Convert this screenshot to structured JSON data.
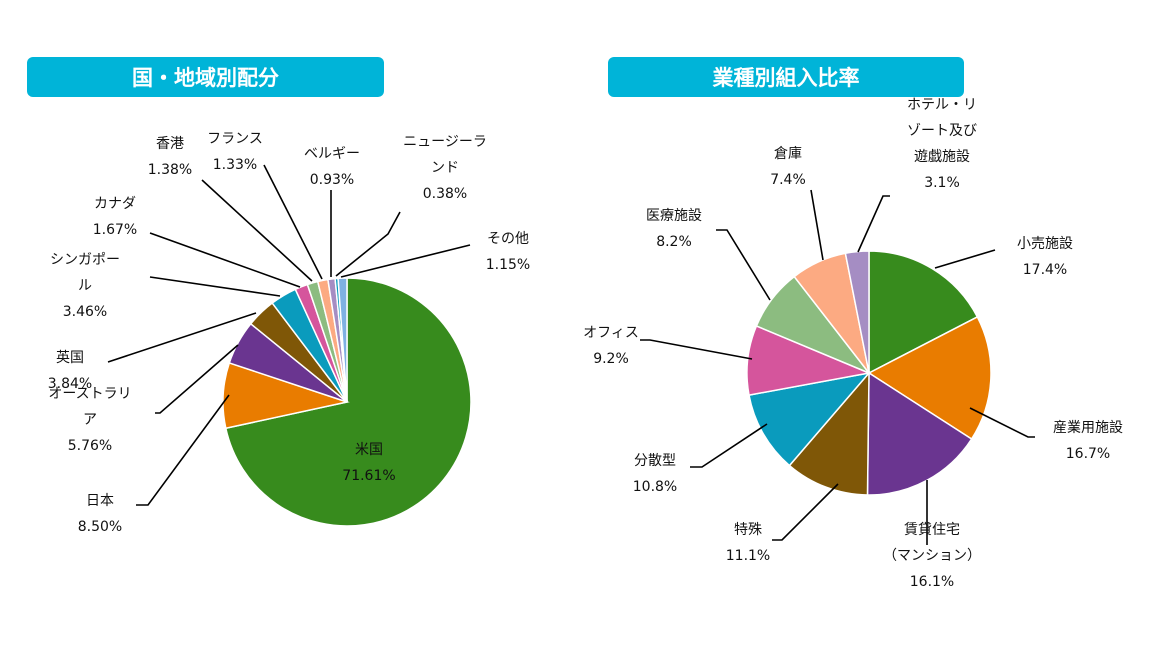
{
  "colors": {
    "green": "#378b1d",
    "orange": "#e97c00",
    "purple": "#6a3590",
    "brown": "#7f5707",
    "teal": "#0a9bbd",
    "pink": "#d5559c",
    "lightgreen": "#8cbc80",
    "peach": "#fcaa82",
    "lavender": "#a58dc3",
    "lightblue": "#7fb1e3",
    "title_bg": "#00b4d8"
  },
  "chart_data": [
    {
      "type": "pie",
      "title": "国・地域別配分",
      "slices": [
        {
          "name": "米国",
          "value": 71.61,
          "pct": "71.61%",
          "color": "#378b1d"
        },
        {
          "name": "日本",
          "value": 8.5,
          "pct": "8.50%",
          "color": "#e97c00"
        },
        {
          "name": [
            "オーストラリ",
            "ア"
          ],
          "value": 5.76,
          "pct": "5.76%",
          "color": "#6a3590"
        },
        {
          "name": "英国",
          "value": 3.84,
          "pct": "3.84%",
          "color": "#7f5707"
        },
        {
          "name": [
            "シンガポー",
            "ル"
          ],
          "value": 3.46,
          "pct": "3.46%",
          "color": "#0a9bbd"
        },
        {
          "name": "カナダ",
          "value": 1.67,
          "pct": "1.67%",
          "color": "#d5559c"
        },
        {
          "name": "香港",
          "value": 1.38,
          "pct": "1.38%",
          "color": "#8cbc80"
        },
        {
          "name": "フランス",
          "value": 1.33,
          "pct": "1.33%",
          "color": "#fcaa82"
        },
        {
          "name": "ベルギー",
          "value": 0.93,
          "pct": "0.93%",
          "color": "#a58dc3"
        },
        {
          "name": [
            "ニュージーラ",
            "ンド"
          ],
          "value": 0.38,
          "pct": "0.38%",
          "color": "#0a9bbd"
        },
        {
          "name": "その他",
          "value": 1.15,
          "pct": "1.15%",
          "color": "#7fb1e3"
        }
      ]
    },
    {
      "type": "pie",
      "title": "業種別組入比率",
      "slices": [
        {
          "name": "小売施設",
          "value": 17.4,
          "pct": "17.4%",
          "color": "#378b1d"
        },
        {
          "name": "産業用施設",
          "value": 16.7,
          "pct": "16.7%",
          "color": "#e97c00"
        },
        {
          "name": [
            "賃貸住宅",
            "（マンション）"
          ],
          "value": 16.1,
          "pct": "16.1%",
          "color": "#6a3590"
        },
        {
          "name": "特殊",
          "value": 11.1,
          "pct": "11.1%",
          "color": "#7f5707"
        },
        {
          "name": "分散型",
          "value": 10.8,
          "pct": "10.8%",
          "color": "#0a9bbd"
        },
        {
          "name": "オフィス",
          "value": 9.2,
          "pct": "9.2%",
          "color": "#d5559c"
        },
        {
          "name": "医療施設",
          "value": 8.2,
          "pct": "8.2%",
          "color": "#8cbc80"
        },
        {
          "name": "倉庫",
          "value": 7.4,
          "pct": "7.4%",
          "color": "#fcaa82"
        },
        {
          "name": [
            "ホテル・リ",
            "ゾート及び",
            "遊戯施設"
          ],
          "value": 3.1,
          "pct": "3.1%",
          "color": "#a58dc3"
        }
      ]
    }
  ]
}
